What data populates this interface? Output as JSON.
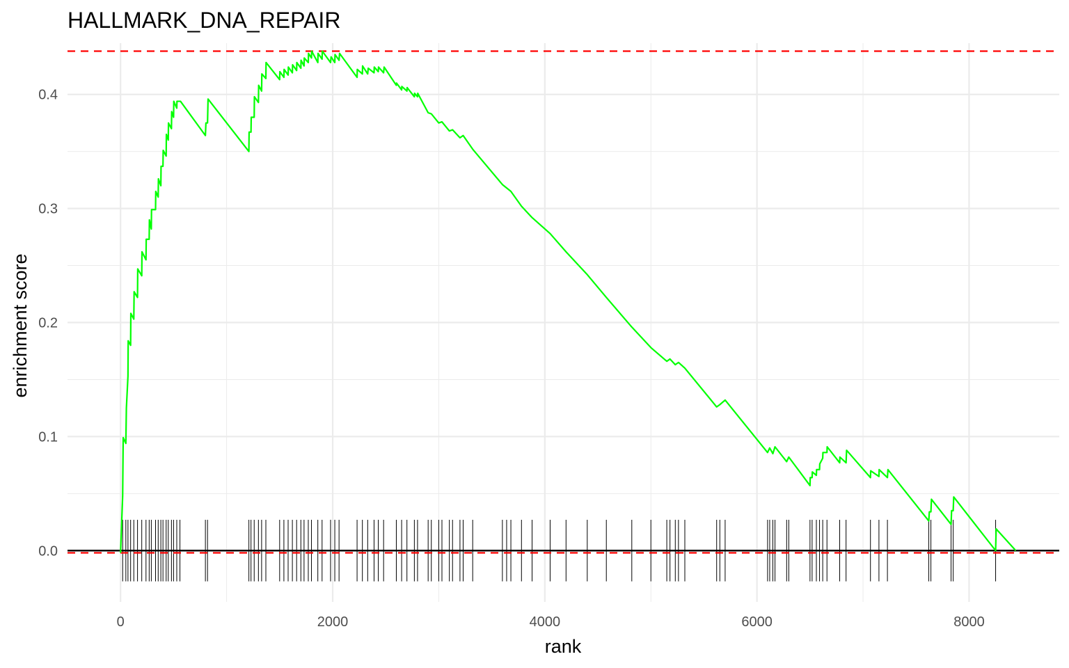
{
  "chart_data": {
    "type": "line",
    "title": "HALLMARK_DNA_REPAIR",
    "xlabel": "rank",
    "ylabel": "enrichment score",
    "xlim": [
      -500,
      8850
    ],
    "ylim": [
      -0.045,
      0.445
    ],
    "x_ticks": [
      0,
      2000,
      4000,
      6000,
      8000
    ],
    "x_tick_labels": [
      "0",
      "2000",
      "4000",
      "6000",
      "8000"
    ],
    "y_ticks": [
      0.0,
      0.1,
      0.2,
      0.3,
      0.4
    ],
    "y_tick_labels": [
      "0.0",
      "0.1",
      "0.2",
      "0.3",
      "0.4"
    ],
    "grid": true,
    "max_es": 0.438,
    "min_es": -0.002,
    "zero_line": 0,
    "colors": {
      "curve": "#00ff00",
      "threshold": "#ff0000",
      "hits": "#000000",
      "grid": "#ebebeb",
      "zero_line": "#000000"
    },
    "series": [
      {
        "x": [
          0,
          20,
          25,
          50,
          55,
          70,
          72,
          95,
          97,
          125,
          128,
          160,
          162,
          200,
          202,
          240,
          242,
          270,
          272,
          290,
          292,
          330,
          332,
          355,
          357,
          380,
          382,
          400,
          402,
          430,
          432,
          450,
          452,
          480,
          482,
          500,
          502,
          530,
          532,
          560,
          565,
          800,
          805,
          820,
          825,
          1210,
          1212,
          1230,
          1232,
          1260,
          1262,
          1300,
          1302,
          1330,
          1332,
          1370,
          1372,
          1500,
          1502,
          1540,
          1542,
          1580,
          1582,
          1620,
          1622,
          1660,
          1662,
          1700,
          1702,
          1730,
          1732,
          1770,
          1772,
          1800,
          1802,
          1860,
          1862,
          1900,
          1902,
          1980,
          1985,
          2020,
          2022,
          2060,
          2065,
          2230,
          2232,
          2280,
          2282,
          2330,
          2335,
          2390,
          2392,
          2430,
          2432,
          2480,
          2485,
          2600,
          2602,
          2650,
          2652,
          2700,
          2702,
          2770,
          2772,
          2800,
          2802,
          2900,
          2930,
          3000,
          3030,
          3100,
          3130,
          3200,
          3230,
          3320,
          3600,
          3640,
          3680,
          3780,
          3880,
          4050,
          4200,
          4400,
          4580,
          4820,
          5000,
          5150,
          5180,
          5230,
          5260,
          5320,
          5620,
          5650,
          5700,
          6100,
          6120,
          6150,
          6170,
          6280,
          6300,
          6500,
          6502,
          6520,
          6522,
          6560,
          6562,
          6590,
          6592,
          6620,
          6622,
          6660,
          6662,
          6780,
          6782,
          6840,
          6845,
          7070,
          7072,
          7150,
          7152,
          7230,
          7235,
          7620,
          7625,
          7640,
          7645,
          7830,
          7835,
          7850,
          7855,
          8250,
          8255,
          8440
        ],
        "y": [
          -0.002,
          0.048,
          0.099,
          0.094,
          0.125,
          0.153,
          0.184,
          0.18,
          0.208,
          0.203,
          0.227,
          0.222,
          0.247,
          0.241,
          0.262,
          0.255,
          0.273,
          0.273,
          0.29,
          0.282,
          0.299,
          0.299,
          0.315,
          0.31,
          0.326,
          0.32,
          0.337,
          0.337,
          0.351,
          0.346,
          0.365,
          0.36,
          0.375,
          0.37,
          0.385,
          0.38,
          0.394,
          0.388,
          0.394,
          0.394,
          0.394,
          0.364,
          0.375,
          0.375,
          0.396,
          0.35,
          0.367,
          0.367,
          0.38,
          0.38,
          0.398,
          0.393,
          0.408,
          0.403,
          0.418,
          0.414,
          0.428,
          0.413,
          0.42,
          0.415,
          0.422,
          0.417,
          0.424,
          0.419,
          0.426,
          0.421,
          0.428,
          0.423,
          0.43,
          0.425,
          0.432,
          0.428,
          0.436,
          0.432,
          0.438,
          0.428,
          0.436,
          0.431,
          0.438,
          0.428,
          0.433,
          0.428,
          0.435,
          0.43,
          0.436,
          0.415,
          0.422,
          0.418,
          0.425,
          0.418,
          0.423,
          0.419,
          0.424,
          0.42,
          0.424,
          0.419,
          0.424,
          0.408,
          0.41,
          0.404,
          0.407,
          0.403,
          0.406,
          0.398,
          0.401,
          0.398,
          0.401,
          0.384,
          0.383,
          0.375,
          0.376,
          0.368,
          0.369,
          0.362,
          0.364,
          0.352,
          0.321,
          0.318,
          0.315,
          0.302,
          0.292,
          0.278,
          0.262,
          0.242,
          0.222,
          0.196,
          0.178,
          0.166,
          0.168,
          0.163,
          0.165,
          0.16,
          0.126,
          0.128,
          0.132,
          0.086,
          0.09,
          0.085,
          0.091,
          0.078,
          0.082,
          0.057,
          0.064,
          0.064,
          0.069,
          0.066,
          0.071,
          0.071,
          0.076,
          0.081,
          0.086,
          0.086,
          0.091,
          0.077,
          0.082,
          0.077,
          0.088,
          0.064,
          0.07,
          0.065,
          0.071,
          0.064,
          0.071,
          0.026,
          0.034,
          0.034,
          0.045,
          0.023,
          0.035,
          0.035,
          0.047,
          0.0,
          0.019,
          0.0
        ]
      }
    ],
    "hits": [
      20,
      50,
      70,
      95,
      125,
      160,
      200,
      240,
      270,
      290,
      330,
      355,
      380,
      400,
      430,
      450,
      480,
      500,
      530,
      560,
      800,
      820,
      1210,
      1230,
      1260,
      1300,
      1330,
      1370,
      1500,
      1540,
      1580,
      1620,
      1660,
      1700,
      1730,
      1770,
      1800,
      1860,
      1900,
      1980,
      2020,
      2060,
      2230,
      2280,
      2330,
      2390,
      2430,
      2480,
      2600,
      2650,
      2700,
      2770,
      2800,
      2900,
      2930,
      3000,
      3030,
      3100,
      3130,
      3200,
      3230,
      3320,
      3600,
      3640,
      3680,
      3780,
      3880,
      4050,
      4200,
      4400,
      4580,
      4820,
      5000,
      5150,
      5180,
      5230,
      5260,
      5320,
      5620,
      5650,
      5700,
      6100,
      6120,
      6150,
      6170,
      6280,
      6300,
      6500,
      6520,
      6560,
      6590,
      6620,
      6660,
      6780,
      6840,
      7070,
      7150,
      7230,
      7620,
      7640,
      7830,
      7850,
      8250
    ]
  }
}
